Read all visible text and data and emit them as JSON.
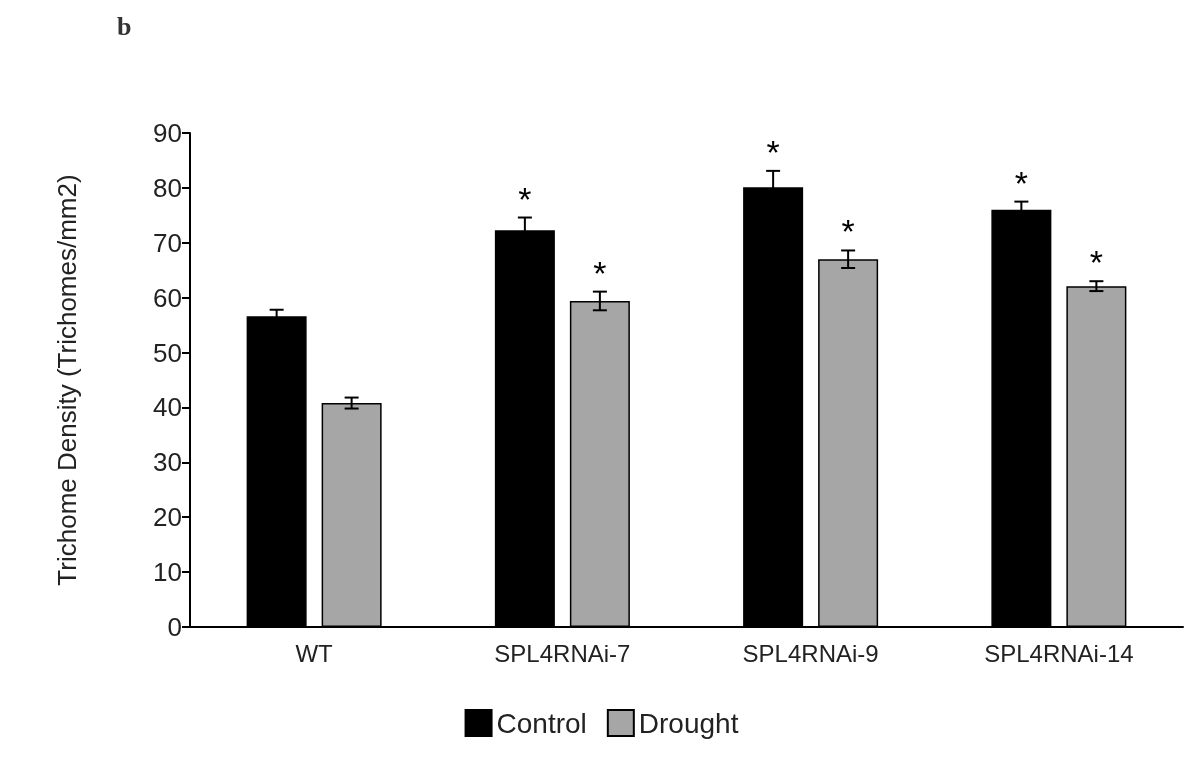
{
  "chart_data": {
    "type": "bar",
    "title": "b",
    "ylabel": "Trichome Density (Trichomes/mm2)",
    "categories": [
      "WT",
      "SPL4RNAi-7",
      "SPL4RNAi-9",
      "SPL4RNAi-14"
    ],
    "series": [
      {
        "name": "Control",
        "color": "#000000",
        "values": [
          56.6,
          72.3,
          80.1,
          76
        ],
        "errors": [
          1.2,
          2.3,
          3,
          1.5
        ],
        "value_labels": [
          null,
          "*",
          "*",
          "*"
        ]
      },
      {
        "name": "Drought",
        "color": "#a6a6a6",
        "values": [
          40.8,
          59.4,
          67,
          62.1
        ],
        "errors": [
          1,
          1.7,
          1.6,
          0.9
        ],
        "value_labels": [
          null,
          "*",
          "*",
          "*"
        ]
      }
    ],
    "ylim": [
      0,
      90
    ],
    "yticks": [
      0,
      10,
      20,
      30,
      40,
      50,
      60,
      70,
      80,
      90
    ],
    "grid": false,
    "legend": "bottom"
  }
}
